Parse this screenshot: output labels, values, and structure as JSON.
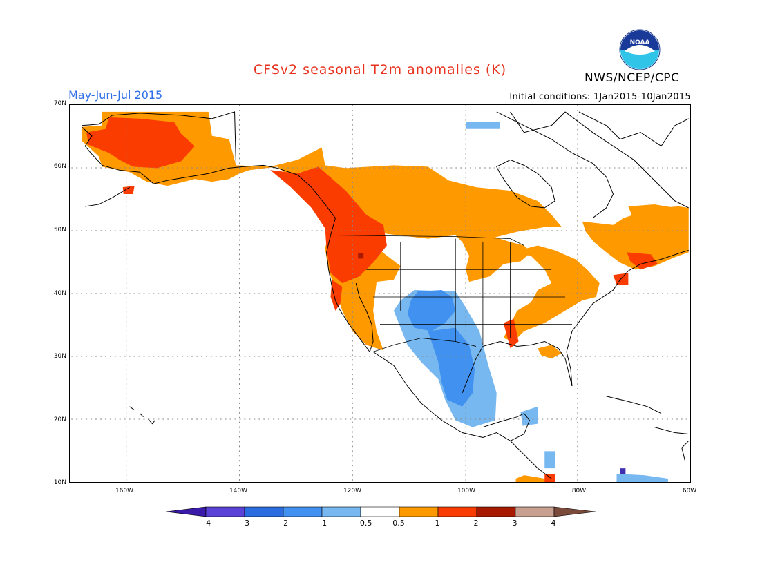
{
  "header": {
    "title": "CFSv2 seasonal T2m anomalies (K)",
    "agency": "NWS/NCEP/CPC",
    "logo_text": "NOAA",
    "period": "May-Jun-Jul 2015",
    "initial_conditions": "Initial conditions: 1Jan2015-10Jan2015"
  },
  "colors": {
    "title": "#e8321e",
    "period": "#2e6fe8",
    "grid": "#888888",
    "warm_05_1": "#ff9900",
    "warm_1_2": "#fa3c00",
    "warm_2_3": "#a81a00",
    "cold_05_1": "#78b8f0",
    "cold_1_2": "#4191f0"
  },
  "map": {
    "lat_labels": [
      "70N",
      "60N",
      "50N",
      "40N",
      "30N",
      "20N",
      "10N"
    ],
    "lon_labels": [
      "160W",
      "140W",
      "120W",
      "100W",
      "80W",
      "60W"
    ]
  },
  "colorbar": {
    "labels": [
      "−4",
      "−3",
      "−2",
      "−1",
      "−0.5",
      "0.5",
      "1",
      "2",
      "3",
      "4"
    ],
    "colors": [
      "#3a1aa8",
      "#5a42d6",
      "#2b6de0",
      "#4191f0",
      "#78b8f0",
      "#ffffff",
      "#ff9900",
      "#fa3c00",
      "#a81a00",
      "#c8a092",
      "#7a4a3a"
    ]
  }
}
